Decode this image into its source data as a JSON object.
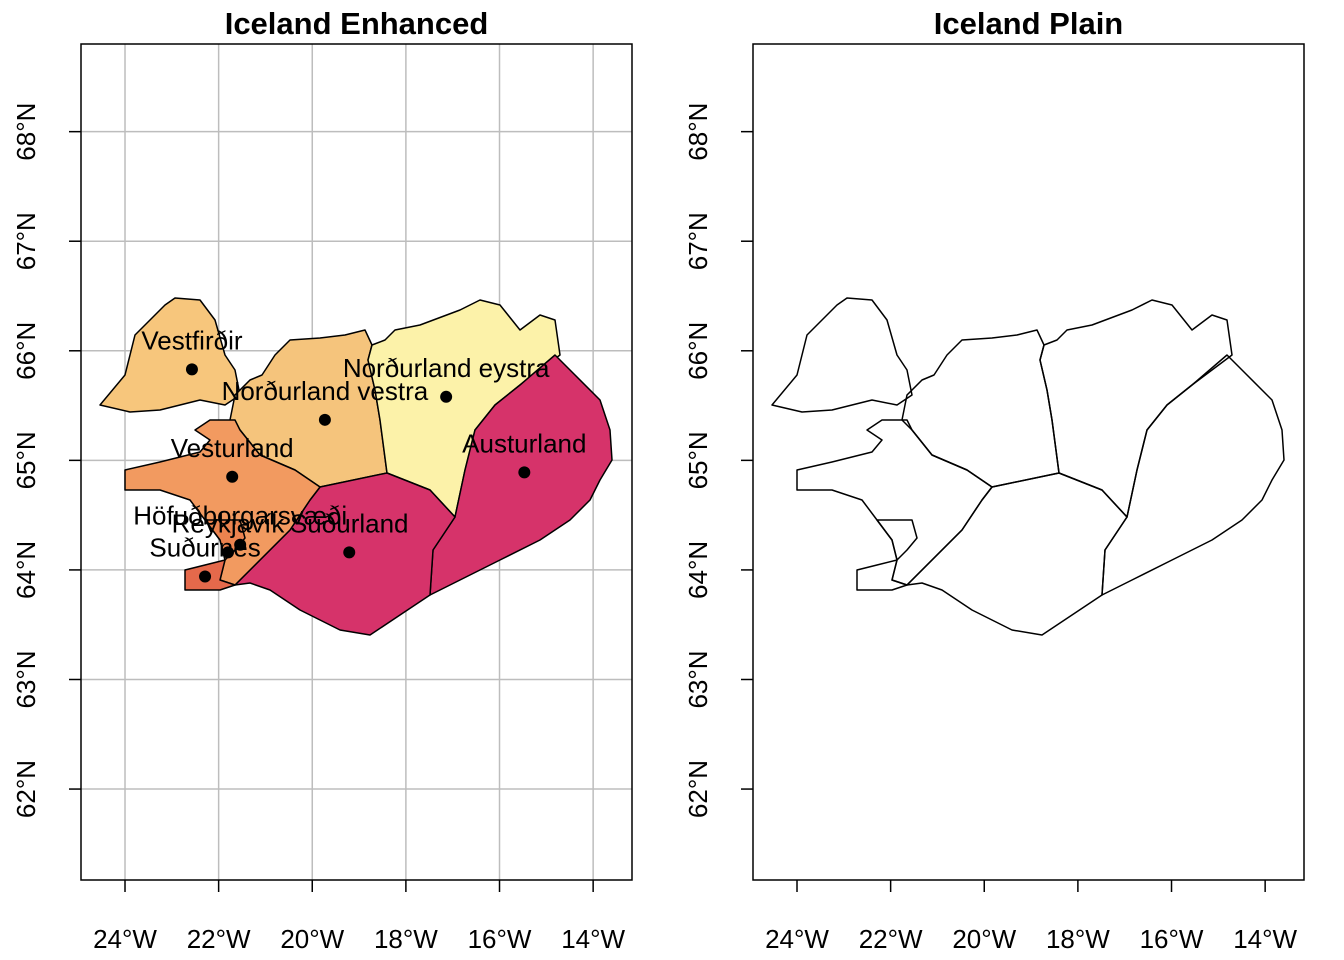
{
  "chart_data": [
    {
      "type": "map",
      "title": "Iceland Enhanced",
      "grid": true,
      "xlim": [
        -24.94,
        -13.17
      ],
      "ylim": [
        61.17,
        68.8
      ],
      "xticks": [
        {
          "value": -24,
          "label": "24°W"
        },
        {
          "value": -22,
          "label": "22°W"
        },
        {
          "value": -20,
          "label": "20°W"
        },
        {
          "value": -18,
          "label": "18°W"
        },
        {
          "value": -16,
          "label": "16°W"
        },
        {
          "value": -14,
          "label": "14°W"
        }
      ],
      "yticks": [
        {
          "value": 62,
          "label": "62°N"
        },
        {
          "value": 63,
          "label": "63°N"
        },
        {
          "value": 64,
          "label": "64°N"
        },
        {
          "value": 65,
          "label": "65°N"
        },
        {
          "value": 66,
          "label": "66°N"
        },
        {
          "value": 67,
          "label": "67°N"
        },
        {
          "value": 68,
          "label": "68°N"
        }
      ],
      "regions": [
        {
          "name": "Vestfirðir",
          "color": "#f7c67c",
          "lon": -22.57,
          "lat": 65.83
        },
        {
          "name": "Norðurland vestra",
          "color": "#f5c47c",
          "lon": -19.73,
          "lat": 65.37
        },
        {
          "name": "Norðurland eystra",
          "color": "#fcf2a9",
          "lon": -17.14,
          "lat": 65.58
        },
        {
          "name": "Austurland",
          "color": "#d6336a",
          "lon": -15.47,
          "lat": 64.89
        },
        {
          "name": "Suðurland",
          "color": "#d6336a",
          "lon": -19.21,
          "lat": 64.16
        },
        {
          "name": "Vesturland",
          "color": "#f29a60",
          "lon": -21.71,
          "lat": 64.85
        },
        {
          "name": "Höfuðborgarsvæði",
          "color": "#ec834f",
          "lon": -21.54,
          "lat": 64.23
        },
        {
          "name": "Suðurnes",
          "color": "#e5694b",
          "lon": -22.29,
          "lat": 63.94
        },
        {
          "name": "Reykjavík",
          "lon": -21.8,
          "lat": 64.16
        }
      ]
    },
    {
      "type": "map",
      "title": "Iceland Plain",
      "grid": false,
      "xlim": [
        -24.94,
        -13.17
      ],
      "ylim": [
        61.17,
        68.8
      ],
      "xticks": [
        {
          "value": -24,
          "label": "24°W"
        },
        {
          "value": -22,
          "label": "22°W"
        },
        {
          "value": -20,
          "label": "20°W"
        },
        {
          "value": -18,
          "label": "18°W"
        },
        {
          "value": -16,
          "label": "16°W"
        },
        {
          "value": -14,
          "label": "14°W"
        }
      ],
      "yticks": [
        {
          "value": 62,
          "label": "62°N"
        },
        {
          "value": 63,
          "label": "63°N"
        },
        {
          "value": 64,
          "label": "64°N"
        },
        {
          "value": 65,
          "label": "65°N"
        },
        {
          "value": 66,
          "label": "66°N"
        },
        {
          "value": 67,
          "label": "67°N"
        },
        {
          "value": 68,
          "label": "68°N"
        }
      ]
    }
  ]
}
